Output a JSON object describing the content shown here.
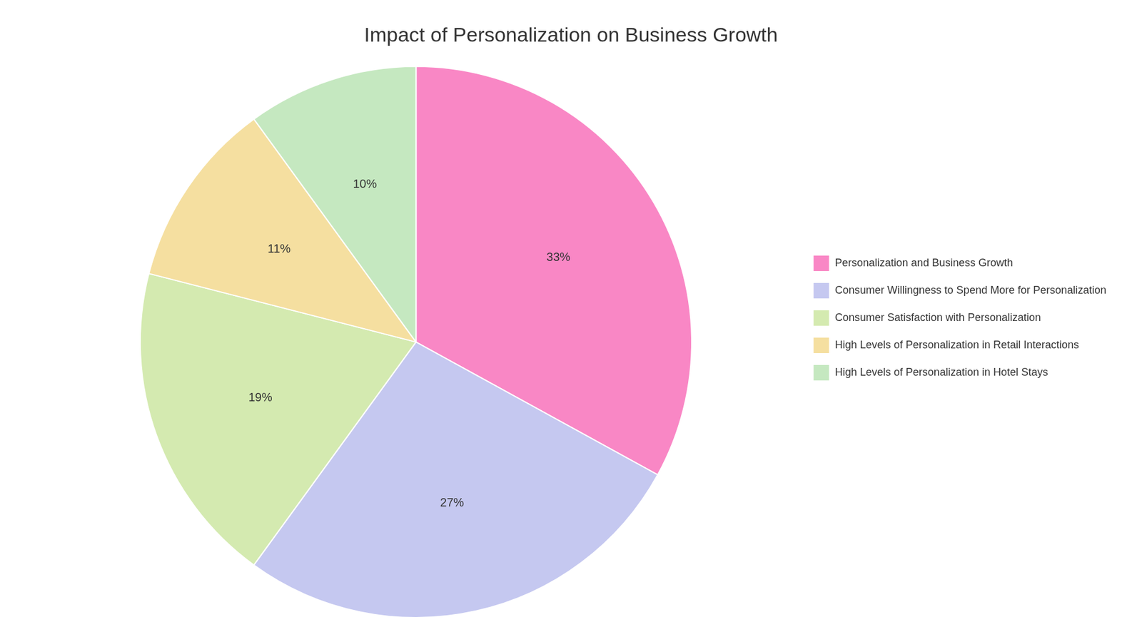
{
  "chart_data": {
    "type": "pie",
    "title": "Impact of Personalization on Business Growth",
    "categories": [
      "Personalization and Business Growth",
      "Consumer Willingness to Spend More for Personalization",
      "Consumer Satisfaction with Personalization",
      "High Levels of Personalization in Retail Interactions",
      "High Levels of Personalization in Hotel Stays"
    ],
    "values": [
      33,
      27,
      19,
      11,
      10
    ],
    "value_labels": [
      "33%",
      "27%",
      "19%",
      "11%",
      "10%"
    ],
    "data_labels": true,
    "colors": [
      "#F987C5",
      "#C5C8F0",
      "#D4EAB0",
      "#F5DFA0",
      "#C5E8C0"
    ],
    "legend": "right"
  }
}
